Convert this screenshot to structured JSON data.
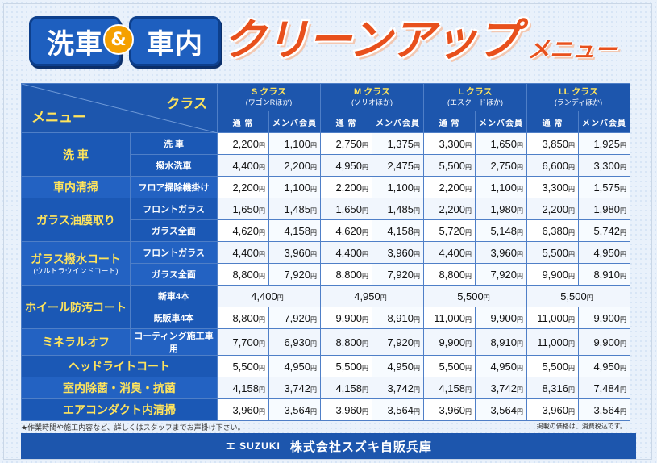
{
  "title": {
    "word1": "洗車",
    "amp": "&",
    "word2": "車内",
    "clean": "クリーンアップ",
    "menu": "メニュー"
  },
  "table": {
    "corner_class": "クラス",
    "corner_menu": "メニュー",
    "classes": [
      {
        "name": "S クラス",
        "sub": "(ワゴンRほか)"
      },
      {
        "name": "M クラス",
        "sub": "(ソリオほか)"
      },
      {
        "name": "L クラス",
        "sub": "(エスクードほか)"
      },
      {
        "name": "LL クラス",
        "sub": "(ランディほか)"
      }
    ],
    "sub_headers": [
      "通 常",
      "メンバ会員"
    ],
    "yen": "円",
    "rows": {
      "wash_a": {
        "cat": "洗 車",
        "sub": "洗 車",
        "prices": [
          "2,200",
          "1,100",
          "2,750",
          "1,375",
          "3,300",
          "1,650",
          "3,850",
          "1,925"
        ]
      },
      "wash_b": {
        "sub": "撥水洗車",
        "prices": [
          "4,400",
          "2,200",
          "4,950",
          "2,475",
          "5,500",
          "2,750",
          "6,600",
          "3,300"
        ]
      },
      "interior": {
        "cat": "車内清掃",
        "sub": "フロア掃除機掛け",
        "prices": [
          "2,200",
          "1,100",
          "2,200",
          "1,100",
          "2,200",
          "1,100",
          "3,300",
          "1,575"
        ]
      },
      "oil_a": {
        "cat": "ガラス油膜取り",
        "sub": "フロントガラス",
        "prices": [
          "1,650",
          "1,485",
          "1,650",
          "1,485",
          "2,200",
          "1,980",
          "2,200",
          "1,980"
        ]
      },
      "oil_b": {
        "sub": "ガラス全面",
        "prices": [
          "4,620",
          "4,158",
          "4,620",
          "4,158",
          "5,720",
          "5,148",
          "6,380",
          "5,742"
        ]
      },
      "coat_a": {
        "cat": "ガラス撥水コート",
        "note": "(ウルトラウインドコート)",
        "sub": "フロントガラス",
        "prices": [
          "4,400",
          "3,960",
          "4,400",
          "3,960",
          "4,400",
          "3,960",
          "5,500",
          "4,950"
        ]
      },
      "coat_b": {
        "sub": "ガラス全面",
        "prices": [
          "8,800",
          "7,920",
          "8,800",
          "7,920",
          "8,800",
          "7,920",
          "9,900",
          "8,910"
        ]
      },
      "wheel_a": {
        "cat": "ホイール防汚コート",
        "sub": "新車4本",
        "prices": [
          "4,400",
          "4,950",
          "5,500",
          "5,500"
        ]
      },
      "wheel_b": {
        "sub": "既販車4本",
        "prices": [
          "8,800",
          "7,920",
          "9,900",
          "8,910",
          "11,000",
          "9,900",
          "11,000",
          "9,900"
        ]
      },
      "mineral": {
        "cat": "ミネラルオフ",
        "sub": "コーティング施工車用",
        "prices": [
          "7,700",
          "6,930",
          "8,800",
          "7,920",
          "9,900",
          "8,910",
          "11,000",
          "9,900"
        ]
      },
      "headlight": {
        "cat": "ヘッドライトコート",
        "prices": [
          "5,500",
          "4,950",
          "5,500",
          "4,950",
          "5,500",
          "4,950",
          "5,500",
          "4,950"
        ]
      },
      "deodor": {
        "cat": "室内除菌・消臭・抗菌",
        "prices": [
          "4,158",
          "3,742",
          "4,158",
          "3,742",
          "4,158",
          "3,742",
          "8,316",
          "7,484"
        ]
      },
      "aircon": {
        "cat": "エアコンダクト内清掃",
        "prices": [
          "3,960",
          "3,564",
          "3,960",
          "3,564",
          "3,960",
          "3,564",
          "3,960",
          "3,564"
        ]
      }
    }
  },
  "notes": {
    "left": "★作業時間や施工内容など、詳しくはスタッフまでお声掛け下さい。",
    "right": "掲載の価格は、消費税込です。"
  },
  "footer": {
    "logo": "SUZUKI",
    "company": "株式会社スズキ自販兵庫"
  },
  "colors": {
    "brand_blue": "#1d56ad",
    "accent_yellow": "#ffe45c",
    "title_orange": "#e8501c",
    "amp_orange": "#f5a000"
  }
}
